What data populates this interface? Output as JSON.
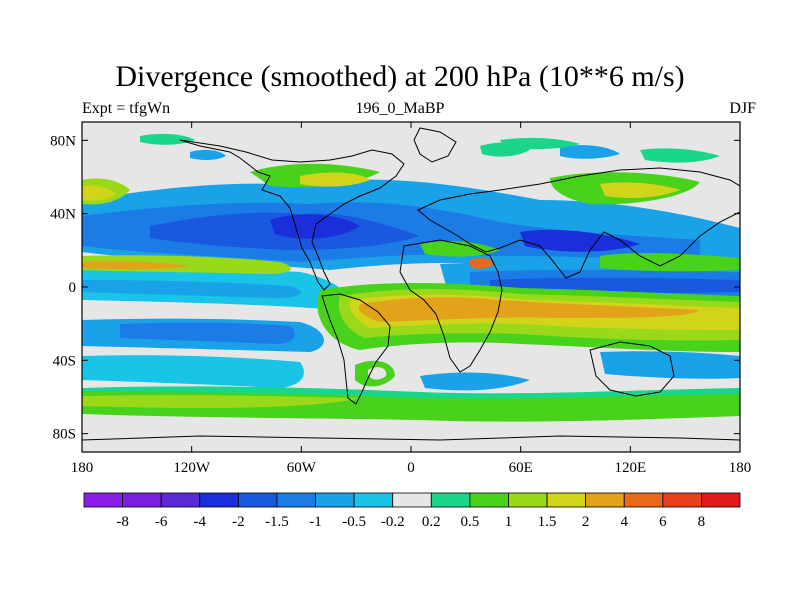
{
  "chart_data": {
    "type": "heatmap",
    "title": "Divergence (smoothed) at 200 hPa (10**6 m/s)",
    "left_string": "Expt = tfgWn",
    "center_string": "196_0_MaBP",
    "right_string": "DJF",
    "x_ticks": [
      "180",
      "120W",
      "60W",
      "0",
      "60E",
      "120E",
      "180"
    ],
    "y_ticks": [
      "80N",
      "40N",
      "0",
      "40S",
      "80S"
    ],
    "xlim": [
      -180,
      180
    ],
    "ylim": [
      -90,
      90
    ],
    "colorbar": {
      "levels": [
        "-8",
        "-6",
        "-4",
        "-2",
        "-1.5",
        "-1",
        "-0.5",
        "-0.2",
        "0.2",
        "0.5",
        "1",
        "1.5",
        "2",
        "4",
        "6",
        "8"
      ],
      "colors": [
        "#8a1ee6",
        "#7a1fe0",
        "#5a2ad8",
        "#1a2ed9",
        "#1a58e0",
        "#1c7ce6",
        "#1aa2e8",
        "#19c4e6",
        "#e6e6e6",
        "#19d68a",
        "#49d21c",
        "#9ad81a",
        "#d2d41a",
        "#e2a21a",
        "#e86a1a",
        "#e8401a",
        "#e01a1a"
      ]
    }
  }
}
